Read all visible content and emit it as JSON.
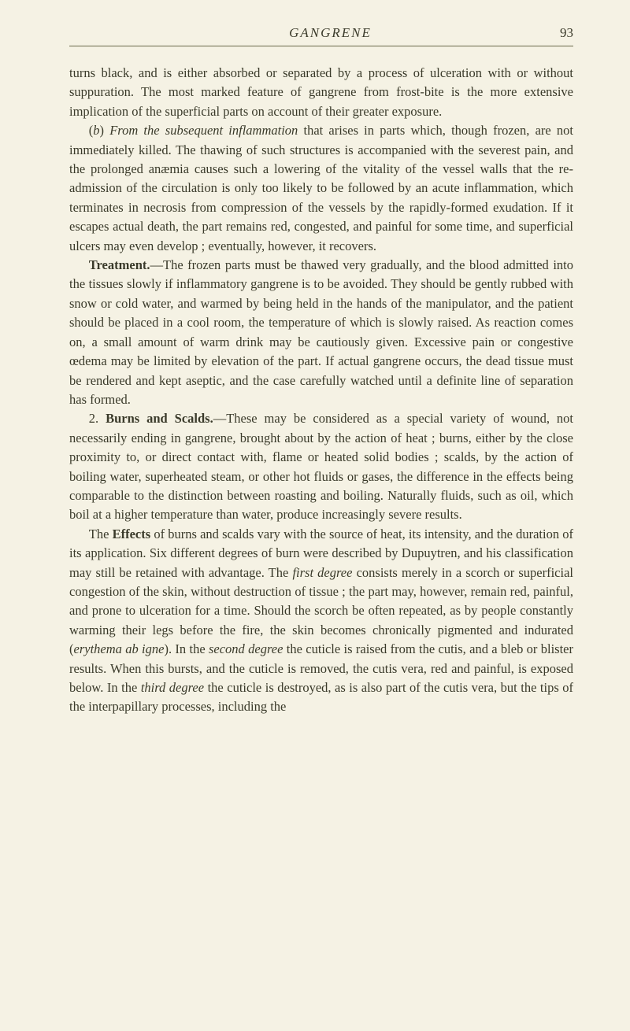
{
  "header": {
    "running_head": "GANGRENE",
    "page_number": "93"
  },
  "paragraphs": {
    "p1_a": "turns black, and is either absorbed or separated by a process of ulceration with or without suppuration. The most marked feature of gangrene from frost-bite is the more extensive implication of the superficial parts on account of their greater exposure.",
    "p2_a": "(",
    "p2_b_i": "b",
    "p2_c": ") ",
    "p2_d_i": "From the subsequent inflammation",
    "p2_e": " that arises in parts which, though frozen, are not immediately killed. The thawing of such structures is accompanied with the severest pain, and the prolonged anæmia causes such a lowering of the vitality of the vessel walls that the re-admission of the circulation is only too likely to be followed by an acute inflammation, which terminates in necrosis from compression of the vessels by the rapidly-formed exudation. If it escapes actual death, the part remains red, congested, and painful for some time, and superficial ulcers may even develop ; eventually, however, it recovers.",
    "p3_a_b": "Treatment.",
    "p3_b": "—The frozen parts must be thawed very gradually, and the blood admitted into the tissues slowly if inflammatory gangrene is to be avoided. They should be gently rubbed with snow or cold water, and warmed by being held in the hands of the manipulator, and the patient should be placed in a cool room, the temperature of which is slowly raised. As reaction comes on, a small amount of warm drink may be cautiously given. Excessive pain or congestive œdema may be limited by elevation of the part. If actual gangrene occurs, the dead tissue must be rendered and kept aseptic, and the case carefully watched until a definite line of separation has formed.",
    "p4_a": "2. ",
    "p4_b_b": "Burns and Scalds.",
    "p4_c": "—These may be considered as a special variety of wound, not necessarily ending in gangrene, brought about by the action of heat ; burns, either by the close proximity to, or direct contact with, flame or heated solid bodies ; scalds, by the action of boiling water, superheated steam, or other hot fluids or gases, the difference in the effects being comparable to the distinction between roasting and boiling. Naturally fluids, such as oil, which boil at a higher temperature than water, produce increasingly severe results.",
    "p5_a": "The ",
    "p5_b_b": "Effects",
    "p5_c": " of burns and scalds vary with the source of heat, its intensity, and the duration of its application. Six different degrees of burn were described by Dupuytren, and his classification may still be retained with advantage. The ",
    "p5_d_i": "first degree",
    "p5_e": " consists merely in a scorch or superficial congestion of the skin, without destruction of tissue ; the part may, however, remain red, painful, and prone to ulceration for a time. Should the scorch be often repeated, as by people constantly warming their legs before the fire, the skin becomes chronically pigmented and indurated (",
    "p5_f_i": "erythema ab igne",
    "p5_g": "). In the ",
    "p5_h_i": "second degree",
    "p5_i": " the cuticle is raised from the cutis, and a bleb or blister results. When this bursts, and the cuticle is removed, the cutis vera, red and painful, is exposed below. In the ",
    "p5_j_i": "third degree",
    "p5_k": " the cuticle is destroyed, as is also part of the cutis vera, but the tips of the interpapillary processes, including the"
  }
}
